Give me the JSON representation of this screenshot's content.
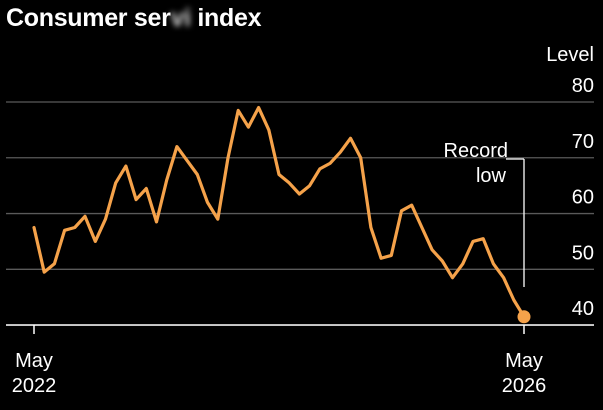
{
  "chart_data": {
    "type": "line",
    "title_visible": "Consumer ser",
    "title_obscured": "vi",
    "title_end": " index",
    "ylabel": "Level",
    "ylim": [
      35,
      80
    ],
    "yticks": [
      40,
      50,
      60,
      70,
      80
    ],
    "xlim": [
      0,
      48
    ],
    "xticks": [
      {
        "x": 0,
        "line1": "May",
        "line2": "2022"
      },
      {
        "x": 48,
        "line1": "May",
        "line2": "2026"
      }
    ],
    "annotation": {
      "line1": "Record",
      "line2": "low"
    },
    "grid": true,
    "colors": {
      "line": "#f5a24a",
      "grid": "#5a5a5a",
      "axis": "#ffffff",
      "background": "#000000"
    },
    "series": [
      {
        "x": [
          0,
          1,
          2,
          3,
          4,
          5,
          6,
          7,
          8,
          9,
          10,
          11,
          12,
          13,
          14,
          15,
          16,
          17,
          18,
          19,
          20,
          21,
          22,
          23,
          24,
          25,
          26,
          27,
          28,
          29,
          30,
          31,
          32,
          33,
          34,
          35,
          36,
          37,
          38,
          39,
          40,
          41,
          42,
          43,
          44,
          45,
          46,
          47,
          48
        ],
        "values": [
          57.5,
          49.5,
          51,
          57,
          57.5,
          59.5,
          55,
          59,
          65.5,
          68.5,
          62.5,
          64.5,
          58.5,
          66,
          72,
          69.5,
          67,
          62,
          59,
          70,
          78.5,
          75.5,
          79,
          75,
          67,
          65.5,
          63.5,
          65,
          68,
          69,
          71,
          73.5,
          70,
          57.5,
          52,
          52.5,
          60.5,
          61.5,
          57.5,
          53.5,
          51.5,
          48.5,
          51,
          55,
          55.5,
          51,
          48.5,
          44.5,
          41.5
        ]
      }
    ]
  }
}
